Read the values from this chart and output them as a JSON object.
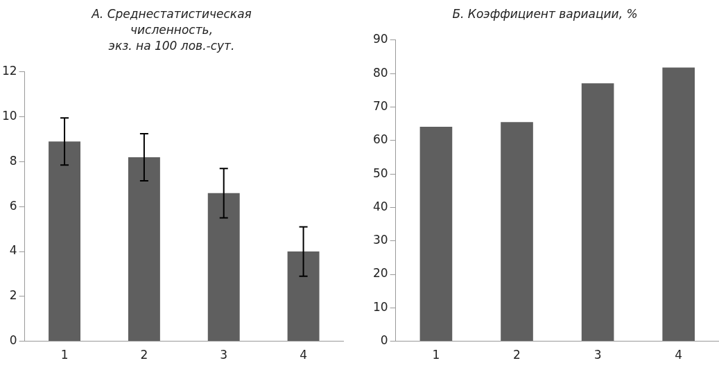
{
  "chart_data": [
    {
      "type": "bar",
      "title": "А. Среднестатистическая\nчисленность,\nэкз. на 100 лов.-сут.",
      "categories": [
        "1",
        "2",
        "3",
        "4"
      ],
      "values": [
        8.9,
        8.2,
        6.6,
        4.0
      ],
      "errors": [
        1.05,
        1.05,
        1.1,
        1.1
      ],
      "color": "#5f5f5f",
      "ylim": [
        0,
        12
      ],
      "yticks": [
        0,
        2,
        4,
        6,
        8,
        10,
        12
      ],
      "grid": false,
      "legend": false
    },
    {
      "type": "bar",
      "title": "Б. Коэффициент вариации, %",
      "categories": [
        "1",
        "2",
        "3",
        "4"
      ],
      "values": [
        64.1,
        65.5,
        77.1,
        81.8
      ],
      "color": "#5f5f5f",
      "ylim": [
        0,
        90
      ],
      "yticks": [
        0,
        10,
        20,
        30,
        40,
        50,
        60,
        70,
        80,
        90
      ],
      "grid": false,
      "legend": false
    }
  ]
}
